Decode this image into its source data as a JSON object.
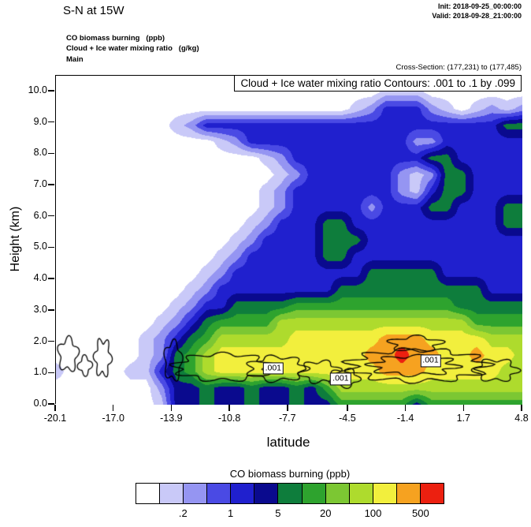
{
  "header": {
    "title": "S-N at 15W",
    "init_line": "Init: 2018-09-25_00:00:00",
    "valid_line": "Valid: 2018-09-28_21:00:00",
    "field_shaded": "CO biomass burning   (ppb)",
    "field_contour": "Cloud + Ice water mixing ratio   (g/kg)",
    "field_grid": "Main",
    "cross_section": "Cross-Section: (177,231) to (177,485)"
  },
  "chart_data": {
    "type": "heatmap",
    "title_box": "Cloud + Ice water mixing ratio Contours: .001 to .1 by .099",
    "xlabel": "latitude",
    "ylabel": "Height (km)",
    "xlim": [
      -20.1,
      4.8
    ],
    "ylim": [
      0,
      10.5
    ],
    "x_ticks": [
      -20.1,
      -17.0,
      -13.9,
      -10.8,
      -7.7,
      -4.5,
      -1.4,
      1.7,
      4.8
    ],
    "x_tick_labels": [
      "-20.1",
      "-17.0",
      "-13.9",
      "-10.8",
      "-7.7",
      "-4.5",
      "-1.4",
      "1.7",
      "4.8"
    ],
    "y_ticks": [
      0,
      1,
      2,
      3,
      4,
      5,
      6,
      7,
      8,
      9,
      10
    ],
    "y_tick_labels": [
      "0.0",
      "1.0",
      "2.0",
      "3.0",
      "4.0",
      "5.0",
      "6.0",
      "7.0",
      "8.0",
      "9.0",
      "10.0"
    ],
    "levels_colors": [
      "#FFFFFF",
      "#C9C9F8",
      "#9595F2",
      "#4A4AE4",
      "#2020CE",
      "#0A0A8E",
      "#0E7D3C",
      "#2EA32E",
      "#7CC733",
      "#AEDB2D",
      "#F2EF3D",
      "#F6A220",
      "#EC2010"
    ],
    "colorbar": {
      "title": "CO biomass burning  (ppb)",
      "tick_labels": [
        ".2",
        "1",
        "5",
        "20",
        "100",
        "500"
      ]
    },
    "grid": {
      "lat_min": -20.1,
      "lat_max": 4.8,
      "km_min": 0,
      "km_max": 10.5,
      "row_order": "top-to-bottom",
      "values": [
        [
          0,
          0,
          0,
          0,
          0,
          0,
          0,
          0,
          0,
          0,
          0,
          0,
          0,
          0,
          0,
          0,
          0,
          0,
          0,
          0,
          0,
          0,
          0,
          0,
          0,
          0,
          0,
          0,
          0,
          0,
          0,
          0
        ],
        [
          0,
          0,
          0,
          0,
          0,
          0,
          0,
          0,
          0,
          0,
          0,
          0,
          0,
          0,
          0,
          0,
          0,
          0,
          0,
          0,
          0,
          0,
          1,
          1,
          1,
          0,
          0,
          0,
          0,
          0,
          0,
          0
        ],
        [
          0,
          0,
          0,
          0,
          0,
          0,
          0,
          0,
          0,
          0,
          0,
          0,
          0,
          0,
          0,
          0,
          0,
          0,
          0,
          0,
          1,
          2,
          4,
          4,
          4,
          2,
          1,
          0,
          1,
          2,
          1,
          2
        ],
        [
          0,
          0,
          0,
          0,
          0,
          0,
          0,
          0,
          1,
          2,
          4,
          4,
          4,
          4,
          4,
          4,
          4,
          4,
          4,
          4,
          4,
          4,
          4,
          4,
          4,
          4,
          4,
          4,
          4,
          4,
          6,
          6
        ],
        [
          0,
          0,
          0,
          0,
          0,
          0,
          0,
          0,
          0,
          0,
          0,
          1,
          2,
          4,
          4,
          4,
          4,
          4,
          4,
          4,
          4,
          4,
          4,
          4,
          2,
          2,
          4,
          4,
          4,
          4,
          4,
          4
        ],
        [
          0,
          0,
          0,
          0,
          0,
          0,
          0,
          0,
          0,
          0,
          0,
          0,
          0,
          0,
          1,
          2,
          4,
          4,
          4,
          4,
          4,
          4,
          4,
          4,
          4,
          6,
          6,
          4,
          4,
          4,
          4,
          4
        ],
        [
          0,
          0,
          0,
          0,
          0,
          0,
          0,
          0,
          0,
          0,
          0,
          0,
          0,
          0,
          0,
          1,
          2,
          4,
          4,
          4,
          4,
          4,
          4,
          2,
          1,
          2,
          6,
          6,
          4,
          4,
          4,
          4
        ],
        [
          0,
          0,
          0,
          0,
          0,
          0,
          0,
          0,
          0,
          0,
          0,
          0,
          0,
          0,
          1,
          2,
          4,
          4,
          4,
          4,
          4,
          4,
          4,
          2,
          1,
          4,
          6,
          6,
          4,
          4,
          4,
          4
        ],
        [
          0,
          0,
          0,
          0,
          0,
          0,
          0,
          0,
          0,
          0,
          0,
          0,
          0,
          0,
          1,
          2,
          4,
          4,
          4,
          4,
          4,
          2,
          4,
          4,
          4,
          6,
          6,
          4,
          4,
          4,
          6,
          6
        ],
        [
          0,
          0,
          0,
          0,
          0,
          0,
          0,
          0,
          0,
          0,
          0,
          0,
          0,
          1,
          2,
          4,
          4,
          4,
          6,
          6,
          4,
          4,
          4,
          4,
          4,
          4,
          4,
          4,
          4,
          4,
          6,
          6
        ],
        [
          0,
          0,
          0,
          0,
          0,
          0,
          0,
          0,
          0,
          0,
          0,
          0,
          1,
          2,
          4,
          4,
          4,
          4,
          6,
          6,
          6,
          4,
          4,
          4,
          4,
          4,
          4,
          4,
          4,
          4,
          4,
          4
        ],
        [
          0,
          0,
          0,
          0,
          0,
          0,
          0,
          0,
          0,
          0,
          0,
          1,
          2,
          4,
          4,
          4,
          4,
          4,
          6,
          6,
          4,
          4,
          4,
          4,
          4,
          4,
          4,
          4,
          4,
          4,
          4,
          4
        ],
        [
          0,
          0,
          0,
          0,
          0,
          0,
          0,
          0,
          0,
          0,
          1,
          2,
          4,
          4,
          4,
          4,
          4,
          4,
          4,
          4,
          4,
          6,
          6,
          6,
          6,
          6,
          4,
          4,
          4,
          4,
          4,
          4
        ],
        [
          0,
          0,
          0,
          0,
          0,
          0,
          0,
          0,
          0,
          1,
          2,
          4,
          4,
          4,
          4,
          4,
          4,
          4,
          4,
          6,
          6,
          6,
          6,
          6,
          6,
          6,
          6,
          6,
          6,
          4,
          4,
          4
        ],
        [
          0,
          0,
          0,
          0,
          0,
          0,
          0,
          0,
          1,
          2,
          4,
          4,
          6,
          6,
          6,
          6,
          7,
          7,
          7,
          7,
          7,
          7,
          7,
          7,
          7,
          7,
          7,
          6,
          6,
          6,
          6,
          6
        ],
        [
          0,
          0,
          0,
          0,
          0,
          0,
          0,
          1,
          2,
          4,
          6,
          7,
          7,
          7,
          7,
          9,
          9,
          9,
          9,
          9,
          9,
          9,
          9,
          9,
          9,
          9,
          9,
          9,
          7,
          7,
          7,
          7
        ],
        [
          0,
          0,
          0,
          0,
          0,
          0,
          1,
          2,
          4,
          6,
          7,
          9,
          9,
          9,
          9,
          9,
          10,
          10,
          10,
          10,
          10,
          10,
          11,
          11,
          11,
          10,
          10,
          10,
          10,
          9,
          9,
          9
        ],
        [
          0,
          0,
          0,
          0,
          0,
          0,
          1,
          2,
          6,
          7,
          9,
          10,
          10,
          10,
          10,
          10,
          10,
          10,
          10,
          10,
          10,
          11,
          11,
          12,
          11,
          11,
          10,
          10,
          11,
          10,
          10,
          9
        ],
        [
          1,
          0,
          0,
          0,
          0,
          1,
          1,
          4,
          6,
          7,
          9,
          10,
          10,
          10,
          10,
          10,
          10,
          10,
          10,
          10,
          10,
          10,
          11,
          11,
          11,
          10,
          10,
          10,
          10,
          10,
          9,
          9
        ],
        [
          0,
          0,
          0,
          0,
          0,
          0,
          0,
          2,
          5,
          5,
          6,
          5,
          5,
          6,
          5,
          5,
          6,
          5,
          7,
          9,
          9,
          9,
          9,
          9,
          9,
          9,
          9,
          9,
          9,
          9,
          9,
          9
        ],
        [
          0,
          0,
          0,
          0,
          0,
          0,
          0,
          1,
          5,
          5,
          6,
          5,
          5,
          6,
          5,
          5,
          6,
          5,
          5,
          7,
          7,
          7,
          7,
          7,
          5,
          7,
          7,
          7,
          7,
          7,
          7,
          7
        ]
      ]
    },
    "contours": {
      "loops": [
        {
          "lat": -19.45,
          "km": 1.6,
          "rx": 0.5,
          "ry": 0.5,
          "amp": 0.22,
          "lobes": 5,
          "phase": 0.5
        },
        {
          "lat": -18.55,
          "km": 1.25,
          "rx": 0.33,
          "ry": 0.28,
          "amp": 0.25,
          "lobes": 4,
          "phase": 1.2
        },
        {
          "lat": -17.6,
          "km": 1.5,
          "rx": 0.42,
          "ry": 0.55,
          "amp": 0.22,
          "lobes": 6,
          "phase": 2.0
        },
        {
          "lat": -13.85,
          "km": 1.4,
          "rx": 0.45,
          "ry": 0.6,
          "amp": 0.18,
          "lobes": 5,
          "phase": 0.8
        },
        {
          "lat": -11.2,
          "km": 1.2,
          "rx": 2.5,
          "ry": 0.42,
          "amp": 0.15,
          "lobes": 9,
          "phase": 0
        },
        {
          "lat": -8.3,
          "km": 1.15,
          "rx": 1.5,
          "ry": 0.38,
          "amp": 0.18,
          "lobes": 7,
          "phase": 1.5
        },
        {
          "lat": -6.0,
          "km": 1.05,
          "rx": 1.0,
          "ry": 0.33,
          "amp": 0.2,
          "lobes": 6,
          "phase": 0.4
        },
        {
          "lat": -4.7,
          "km": 0.85,
          "rx": 0.75,
          "ry": 0.28,
          "amp": 0.2,
          "lobes": 5,
          "phase": 2.2
        },
        {
          "lat": -0.8,
          "km": 1.25,
          "rx": 3.6,
          "ry": 0.5,
          "amp": 0.15,
          "lobes": 11,
          "phase": 0.9
        },
        {
          "lat": -1.0,
          "km": 1.25,
          "rx": 2.2,
          "ry": 0.3,
          "amp": 0.2,
          "lobes": 8,
          "phase": 2.5
        },
        {
          "lat": 3.4,
          "km": 1.1,
          "rx": 1.1,
          "ry": 0.33,
          "amp": 0.2,
          "lobes": 6,
          "phase": 1.7
        },
        {
          "lat": -0.9,
          "km": 1.95,
          "rx": 1.3,
          "ry": 0.22,
          "amp": 0.25,
          "lobes": 5,
          "phase": 0.3
        }
      ],
      "labels": [
        {
          "text": ".001",
          "lat": -8.5,
          "km": 1.15
        },
        {
          "text": ".001",
          "lat": -4.9,
          "km": 0.82
        },
        {
          "text": ".001",
          "lat": -0.1,
          "km": 1.4
        }
      ]
    }
  }
}
